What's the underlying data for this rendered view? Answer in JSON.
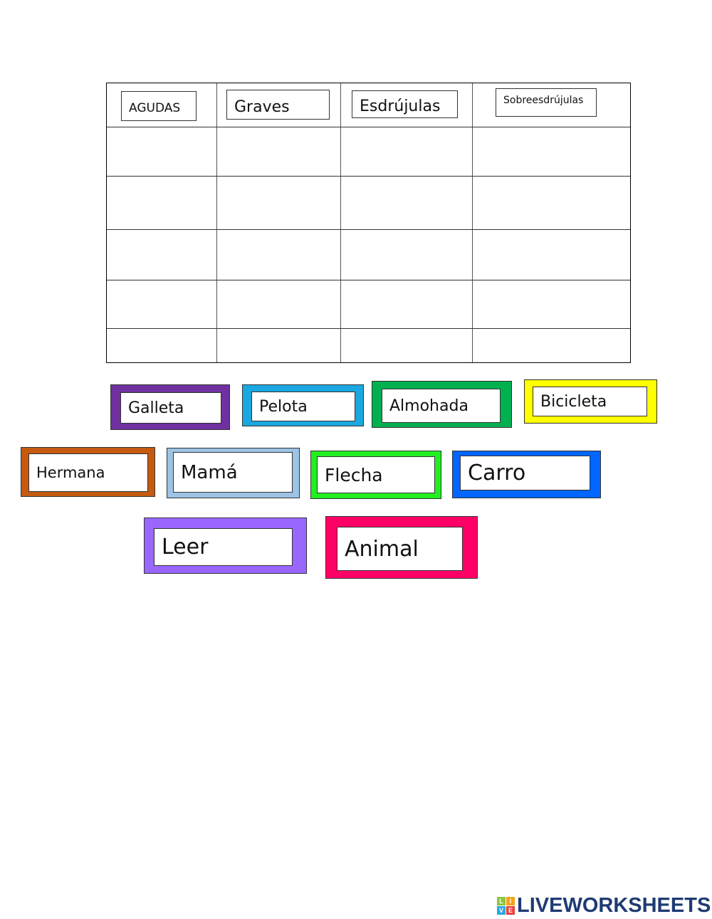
{
  "table": {
    "headers": [
      "AGUDAS",
      "Graves",
      "Esdrújulas",
      "Sobreesdrújulas"
    ],
    "empty_rows": 5
  },
  "cards": [
    {
      "word": "Galleta",
      "color": "#7030a0"
    },
    {
      "word": "Pelota",
      "color": "#1ba7e0"
    },
    {
      "word": "Almohada",
      "color": "#00b050"
    },
    {
      "word": "Bicicleta",
      "color": "#ffff00"
    },
    {
      "word": "Hermana",
      "color": "#c55a11"
    },
    {
      "word": "Mamá",
      "color": "#9dc3e6"
    },
    {
      "word": "Flecha",
      "color": "#22ee22"
    },
    {
      "word": "Carro",
      "color": "#0066ff"
    },
    {
      "word": "Leer",
      "color": "#9966ff"
    },
    {
      "word": "Animal",
      "color": "#ff0066"
    }
  ],
  "logo": {
    "text": "LIVEWORKSHEETS",
    "letters": [
      "L",
      "I",
      "V",
      "E"
    ],
    "colors": [
      "#8dc63f",
      "#f7a21b",
      "#29a8e0",
      "#e8403a"
    ]
  }
}
